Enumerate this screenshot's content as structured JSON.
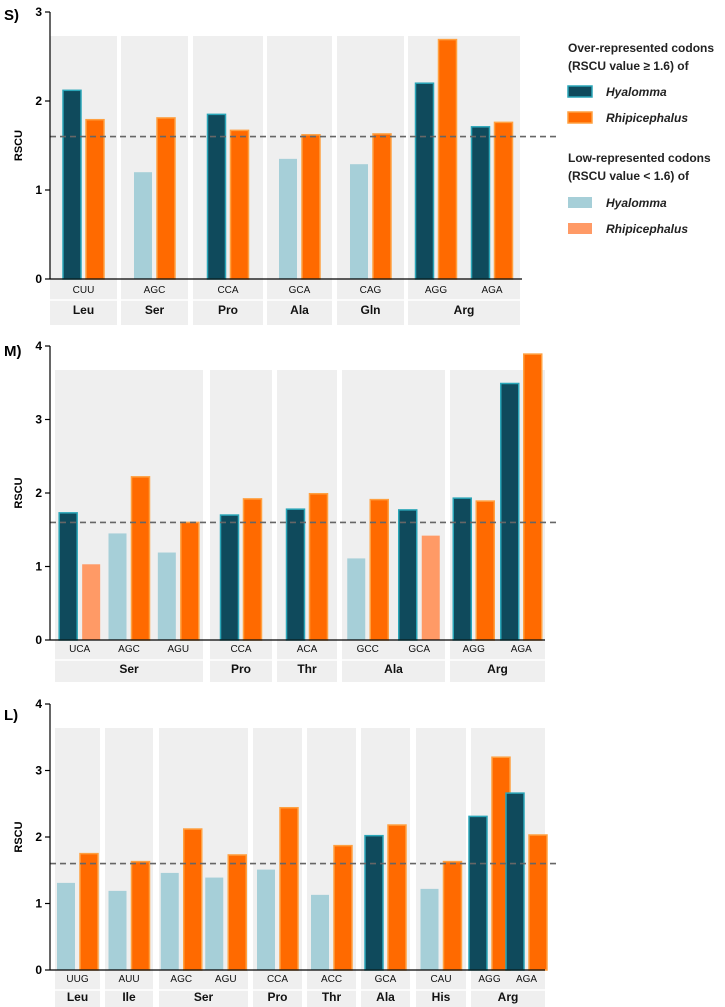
{
  "colors": {
    "hy_over": "#0f4a5c",
    "hy_over_stroke": "#2aa6b8",
    "rh_over": "#ff6a00",
    "rh_over_stroke": "#ffa040",
    "hy_low": "#a6cfd8",
    "rh_low": "#ff9a66",
    "panel_bg": "#efefef",
    "threshold": "#666666"
  },
  "legend": {
    "over_title_1": "Over-represented codons",
    "over_title_2": "(RSCU value ≥  1.6) of",
    "low_title_1": "Low-represented codons",
    "low_title_2": "(RSCU value < 1.6) of",
    "items": [
      {
        "label": "Hyalomma",
        "key": "hy_over"
      },
      {
        "label": "Rhipicephalus",
        "key": "rh_over"
      },
      {
        "label": "Hyalomma",
        "key": "hy_low"
      },
      {
        "label": "Rhipicephalus",
        "key": "rh_low"
      }
    ]
  },
  "chart_data": [
    {
      "type": "bar",
      "panel": "S)",
      "ylabel": "RSCU",
      "ylim": [
        0,
        3
      ],
      "yticks": [
        0,
        1,
        2,
        3
      ],
      "threshold": 1.6,
      "groups": [
        {
          "aa": "Leu",
          "codons": [
            {
              "codon": "CUU",
              "hy": 2.12,
              "rh": 1.79
            }
          ]
        },
        {
          "aa": "Ser",
          "codons": [
            {
              "codon": "AGC",
              "hy": null,
              "rh": 1.81,
              "hy_low": 1.2
            }
          ]
        },
        {
          "aa": "Pro",
          "codons": [
            {
              "codon": "CCA",
              "hy": 1.85,
              "rh": 1.67
            }
          ]
        },
        {
          "aa": "Ala",
          "codons": [
            {
              "codon": "GCA",
              "hy": null,
              "rh": 1.62,
              "hy_low": 1.35
            }
          ]
        },
        {
          "aa": "Gln",
          "codons": [
            {
              "codon": "CAG",
              "hy": null,
              "rh": 1.63,
              "hy_low": 1.29
            }
          ]
        },
        {
          "aa": "Arg",
          "codons": [
            {
              "codon": "AGG",
              "hy": 2.2,
              "rh": 2.69
            },
            {
              "codon": "AGA",
              "hy": 1.71,
              "rh": 1.76
            }
          ]
        }
      ]
    },
    {
      "type": "bar",
      "panel": "M)",
      "ylabel": "RSCU",
      "ylim": [
        0,
        4
      ],
      "yticks": [
        0,
        1,
        2,
        3,
        4
      ],
      "threshold": 1.6,
      "groups": [
        {
          "aa": "Ser",
          "codons": [
            {
              "codon": "UCA",
              "hy": 1.73,
              "rh": null,
              "rh_low": 1.03
            },
            {
              "codon": "AGC",
              "hy": null,
              "rh": 2.22,
              "hy_low": 1.45
            },
            {
              "codon": "AGU",
              "hy": null,
              "rh": 1.6,
              "hy_low": 1.19
            }
          ]
        },
        {
          "aa": "Pro",
          "codons": [
            {
              "codon": "CCA",
              "hy": 1.7,
              "rh": 1.92
            }
          ]
        },
        {
          "aa": "Thr",
          "codons": [
            {
              "codon": "ACA",
              "hy": 1.78,
              "rh": 1.99
            }
          ]
        },
        {
          "aa": "Ala",
          "codons": [
            {
              "codon": "GCC",
              "hy": null,
              "rh": 1.91,
              "hy_low": 1.11
            },
            {
              "codon": "GCA",
              "hy": 1.77,
              "rh": null,
              "rh_low": 1.42
            }
          ]
        },
        {
          "aa": "Arg",
          "codons": [
            {
              "codon": "AGG",
              "hy": 1.93,
              "rh": 1.89
            },
            {
              "codon": "AGA",
              "hy": 3.49,
              "rh": 3.89
            }
          ]
        }
      ]
    },
    {
      "type": "bar",
      "panel": "L)",
      "ylabel": "RSCU",
      "ylim": [
        0,
        4
      ],
      "yticks": [
        0,
        1,
        2,
        3,
        4
      ],
      "threshold": 1.6,
      "groups": [
        {
          "aa": "Leu",
          "codons": [
            {
              "codon": "UUG",
              "hy": null,
              "rh": 1.75,
              "hy_low": 1.31
            }
          ]
        },
        {
          "aa": "Ile",
          "codons": [
            {
              "codon": "AUU",
              "hy": null,
              "rh": 1.63,
              "hy_low": 1.19
            }
          ]
        },
        {
          "aa": "Ser",
          "codons": [
            {
              "codon": "AGC",
              "hy": null,
              "rh": 2.12,
              "hy_low": 1.46
            },
            {
              "codon": "AGU",
              "hy": null,
              "rh": 1.73,
              "hy_low": 1.39
            }
          ]
        },
        {
          "aa": "Pro",
          "codons": [
            {
              "codon": "CCA",
              "hy": null,
              "rh": 2.44,
              "hy_low": 1.51
            }
          ]
        },
        {
          "aa": "Thr",
          "codons": [
            {
              "codon": "ACC",
              "hy": null,
              "rh": 1.87,
              "hy_low": 1.13
            }
          ]
        },
        {
          "aa": "Ala",
          "codons": [
            {
              "codon": "GCA",
              "hy": 2.02,
              "rh": 2.18
            }
          ]
        },
        {
          "aa": "His",
          "codons": [
            {
              "codon": "CAU",
              "hy": null,
              "rh": 1.63,
              "hy_low": 1.22
            }
          ]
        },
        {
          "aa": "Arg",
          "codons": [
            {
              "codon": "AGG",
              "hy": 2.31,
              "rh": 3.2
            },
            {
              "codon": "AGA",
              "hy": 2.66,
              "rh": 2.03
            }
          ]
        }
      ]
    }
  ]
}
